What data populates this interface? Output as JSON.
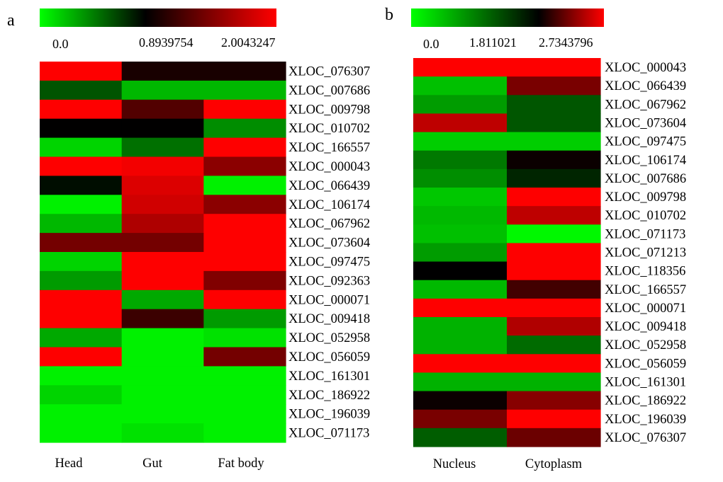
{
  "chart_data": [
    {
      "type": "heatmap",
      "panel_label": "a",
      "colorscale": {
        "low": "#00ff00",
        "mid": "#000000",
        "high": "#ff0000"
      },
      "colorbar_ticks": [
        "0.0",
        "0.8939754",
        "2.0043247"
      ],
      "tick_values": [
        0.0,
        0.8939754,
        2.0043247
      ],
      "columns": [
        "Head",
        "Gut",
        "Fat body"
      ],
      "rows": [
        "XLOC_076307",
        "XLOC_007686",
        "XLOC_009798",
        "XLOC_010702",
        "XLOC_166557",
        "XLOC_000043",
        "XLOC_066439",
        "XLOC_106174",
        "XLOC_067962",
        "XLOC_073604",
        "XLOC_097475",
        "XLOC_092363",
        "XLOC_000071",
        "XLOC_009418",
        "XLOC_052958",
        "XLOC_056059",
        "XLOC_161301",
        "XLOC_186922",
        "XLOC_196039",
        "XLOC_071173"
      ],
      "values": [
        [
          2.0,
          1.0,
          1.0
        ],
        [
          0.6,
          0.25,
          0.25
        ],
        [
          2.0,
          1.25,
          2.0
        ],
        [
          0.9,
          0.9,
          0.4
        ],
        [
          0.15,
          0.5,
          2.0
        ],
        [
          2.0,
          1.95,
          1.5
        ],
        [
          0.85,
          1.85,
          0.05
        ],
        [
          0.05,
          1.8,
          1.5
        ],
        [
          0.25,
          1.65,
          2.0
        ],
        [
          1.4,
          1.4,
          2.0
        ],
        [
          0.15,
          2.0,
          2.0
        ],
        [
          0.35,
          2.0,
          1.45
        ],
        [
          2.0,
          0.3,
          2.0
        ],
        [
          2.0,
          1.15,
          0.35
        ],
        [
          0.3,
          0.05,
          0.1
        ],
        [
          2.0,
          0.05,
          1.4
        ],
        [
          0.05,
          0.05,
          0.05
        ],
        [
          0.15,
          0.05,
          0.05
        ],
        [
          0.05,
          0.05,
          0.05
        ],
        [
          0.05,
          0.1,
          0.05
        ]
      ]
    },
    {
      "type": "heatmap",
      "panel_label": "b",
      "colorscale": {
        "low": "#00ff00",
        "mid": "#000000",
        "high": "#ff0000"
      },
      "colorbar_ticks": [
        "0.0",
        "1.811021",
        "2.7343796"
      ],
      "tick_values": [
        0.0,
        1.811021,
        2.7343796
      ],
      "columns": [
        "Nucleus",
        "Cytoplasm"
      ],
      "rows": [
        "XLOC_000043",
        "XLOC_066439",
        "XLOC_067962",
        "XLOC_073604",
        "XLOC_097475",
        "XLOC_106174",
        "XLOC_007686",
        "XLOC_009798",
        "XLOC_010702",
        "XLOC_071173",
        "XLOC_071213",
        "XLOC_118356",
        "XLOC_166557",
        "XLOC_000071",
        "XLOC_009418",
        "XLOC_052958",
        "XLOC_056059",
        "XLOC_161301",
        "XLOC_186922",
        "XLOC_196039",
        "XLOC_076307"
      ],
      "values": [
        [
          2.73,
          2.73
        ],
        [
          0.45,
          2.25
        ],
        [
          0.7,
          1.2
        ],
        [
          2.5,
          1.2
        ],
        [
          0.35,
          0.35
        ],
        [
          0.95,
          1.85
        ],
        [
          0.8,
          1.55
        ],
        [
          0.4,
          2.73
        ],
        [
          0.5,
          2.5
        ],
        [
          0.45,
          0.05
        ],
        [
          0.7,
          2.73
        ],
        [
          1.81,
          2.73
        ],
        [
          0.5,
          2.05
        ],
        [
          2.73,
          2.73
        ],
        [
          0.55,
          2.45
        ],
        [
          0.55,
          1.05
        ],
        [
          2.73,
          2.73
        ],
        [
          0.55,
          0.55
        ],
        [
          1.85,
          2.3
        ],
        [
          2.25,
          2.73
        ],
        [
          1.15,
          2.2
        ]
      ]
    }
  ]
}
